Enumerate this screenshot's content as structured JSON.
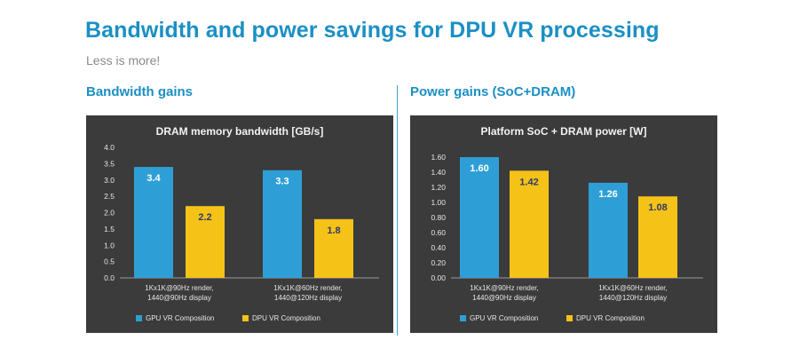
{
  "page": {
    "title": "Bandwidth and power savings for DPU VR processing",
    "subtitle": "Less is more!"
  },
  "colors": {
    "accent": "#1b8fc4",
    "chart_bg": "#3b3b3b",
    "gpu_bar": "#2e9fd6",
    "dpu_bar": "#f5c218"
  },
  "chart_data": [
    {
      "section_heading": "Bandwidth gains",
      "type": "bar",
      "title": "DRAM memory bandwidth [GB/s]",
      "categories": [
        "1Kx1K@90Hz render,\n1440@90Hz display",
        "1Kx1K@60Hz render,\n1440@120Hz display"
      ],
      "series": [
        {
          "name": "GPU VR Composition",
          "values": [
            3.4,
            3.3
          ],
          "labels": [
            "3.4",
            "3.3"
          ]
        },
        {
          "name": "DPU VR Composition",
          "values": [
            2.2,
            1.8
          ],
          "labels": [
            "2.2",
            "1.8"
          ]
        }
      ],
      "yticks": [
        "0.0",
        "0.5",
        "1.0",
        "1.5",
        "2.0",
        "2.5",
        "3.0",
        "3.5",
        "4.0"
      ],
      "ylim": [
        0,
        4.0
      ],
      "grid": false,
      "legend": "bottom"
    },
    {
      "section_heading": "Power gains (SoC+DRAM)",
      "type": "bar",
      "title": "Platform SoC + DRAM power [W]",
      "categories": [
        "1Kx1K@90Hz render,\n1440@90Hz display",
        "1Kx1K@60Hz render,\n1440@120Hz display"
      ],
      "series": [
        {
          "name": "GPU VR Composition",
          "values": [
            1.6,
            1.26
          ],
          "labels": [
            "1.60",
            "1.26"
          ]
        },
        {
          "name": "DPU VR Composition",
          "values": [
            1.42,
            1.08
          ],
          "labels": [
            "1.42",
            "1.08"
          ]
        }
      ],
      "yticks": [
        "0.00",
        "0.20",
        "0.40",
        "0.60",
        "0.80",
        "1.00",
        "1.20",
        "1.40",
        "1.60"
      ],
      "ylim": [
        0,
        1.6
      ],
      "grid": false,
      "legend": "bottom"
    }
  ]
}
